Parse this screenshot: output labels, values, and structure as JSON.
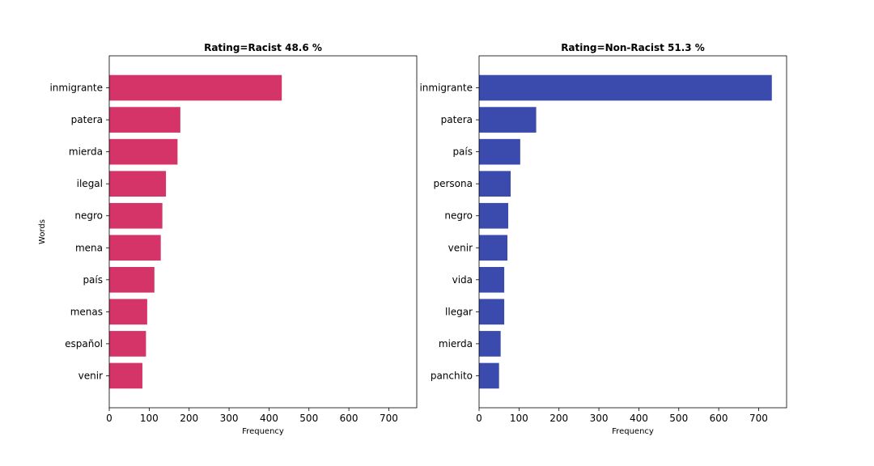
{
  "chart_data": [
    {
      "type": "bar",
      "orientation": "horizontal",
      "title": "Rating=Racist 48.6 %",
      "xlabel": "Frequency",
      "ylabel": "Words",
      "xlim": [
        0,
        770
      ],
      "xticks": [
        0,
        100,
        200,
        300,
        400,
        500,
        600,
        700
      ],
      "color": "#d43468",
      "grid": false,
      "categories": [
        "inmigrante",
        "patera",
        "mierda",
        "ilegal",
        "negro",
        "mena",
        "país",
        "menas",
        "español",
        "venir"
      ],
      "values": [
        432,
        178,
        171,
        142,
        133,
        129,
        113,
        95,
        92,
        83
      ]
    },
    {
      "type": "bar",
      "orientation": "horizontal",
      "title": "Rating=Non-Racist 51.3 %",
      "xlabel": "Frequency",
      "ylabel": "",
      "xlim": [
        0,
        770
      ],
      "xticks": [
        0,
        100,
        200,
        300,
        400,
        500,
        600,
        700
      ],
      "color": "#3a4aad",
      "grid": false,
      "categories": [
        "inmigrante",
        "patera",
        "país",
        "persona",
        "negro",
        "venir",
        "vida",
        "llegar",
        "mierda",
        "panchito"
      ],
      "values": [
        733,
        143,
        103,
        79,
        73,
        71,
        63,
        63,
        54,
        50
      ]
    }
  ]
}
